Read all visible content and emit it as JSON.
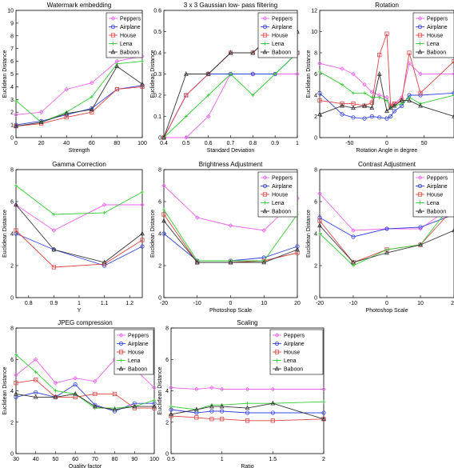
{
  "series_names": [
    "Peppers",
    "Airplane",
    "House",
    "Lena",
    "Baboon"
  ],
  "series_colors": [
    "#ee66ee",
    "#3344dd",
    "#dd4444",
    "#33cc33",
    "#333333"
  ],
  "ylabel": "Euclidean Distance",
  "chart_data": [
    {
      "type": "line",
      "title": "Watermark embedding",
      "xlabel": "Strength",
      "ylabel": "Euclidean Distance",
      "xlim": [
        0,
        100
      ],
      "ylim": [
        0,
        10
      ],
      "xticks": [
        0,
        20,
        40,
        60,
        80,
        100
      ],
      "yticks": [
        0,
        1,
        2,
        3,
        4,
        5,
        6,
        7,
        8,
        9,
        10
      ],
      "legend": "top-left",
      "x": [
        0,
        20,
        40,
        60,
        80,
        100
      ],
      "series": [
        {
          "name": "Peppers",
          "values": [
            1.8,
            2.0,
            3.8,
            4.3,
            6.0,
            6.4
          ]
        },
        {
          "name": "Airplane",
          "values": [
            1.0,
            1.3,
            1.8,
            2.3,
            3.8,
            4.1
          ]
        },
        {
          "name": "House",
          "values": [
            0.9,
            1.1,
            1.6,
            2.0,
            3.8,
            4.0
          ]
        },
        {
          "name": "Lena",
          "values": [
            2.9,
            1.2,
            2.0,
            3.2,
            5.8,
            6.0
          ]
        },
        {
          "name": "Baboon",
          "values": [
            0.9,
            1.2,
            1.9,
            2.2,
            5.6,
            4.2
          ]
        }
      ]
    },
    {
      "type": "line",
      "title": "3 x 3 Gaussian low- pass filtering",
      "xlabel": "Standard Deviation",
      "ylabel": "Euclidean Distance",
      "xlim": [
        0.4,
        1
      ],
      "ylim": [
        0,
        0.6
      ],
      "xticks": [
        0.4,
        0.5,
        0.6,
        0.7,
        0.8,
        0.9,
        1
      ],
      "yticks": [
        0,
        0.1,
        0.2,
        0.3,
        0.4,
        0.5,
        0.6
      ],
      "legend": "top-right",
      "x": [
        0.4,
        0.5,
        0.6,
        0.7,
        0.8,
        0.9,
        1.0
      ],
      "series": [
        {
          "name": "Peppers",
          "values": [
            0,
            0,
            0.1,
            0.3,
            0.3,
            0.3,
            0.3
          ]
        },
        {
          "name": "Airplane",
          "values": [
            0,
            0.2,
            0.3,
            0.3,
            0.3,
            0.3,
            0.4
          ]
        },
        {
          "name": "House",
          "values": [
            0,
            0.2,
            0.3,
            0.4,
            0.4,
            0.5,
            0.4
          ]
        },
        {
          "name": "Lena",
          "values": [
            0,
            0.1,
            0.2,
            0.3,
            0.2,
            0.3,
            0.4
          ]
        },
        {
          "name": "Baboon",
          "values": [
            0,
            0.3,
            0.3,
            0.4,
            0.4,
            0.5,
            0.5
          ]
        }
      ]
    },
    {
      "type": "line",
      "title": "Rotation",
      "xlabel": "Rotation Angle in degree",
      "ylabel": "Euclidean Distance",
      "xlim": [
        -90,
        90
      ],
      "ylim": [
        0,
        12
      ],
      "xticks": [
        -50,
        0,
        50
      ],
      "yticks": [
        0,
        2,
        4,
        6,
        8,
        10,
        12
      ],
      "legend": "top-right",
      "x": [
        -90,
        -60,
        -45,
        -30,
        -20,
        -10,
        0,
        5,
        10,
        20,
        30,
        45,
        90
      ],
      "series": [
        {
          "name": "Peppers",
          "values": [
            7.0,
            6.5,
            6.0,
            5.0,
            4.3,
            4.0,
            3.8,
            3.0,
            3.2,
            3.8,
            7.0,
            6.0,
            6.0
          ]
        },
        {
          "name": "Airplane",
          "values": [
            4.2,
            2.2,
            1.9,
            1.8,
            2.0,
            1.9,
            1.8,
            2.0,
            2.5,
            3.0,
            4.0,
            4.0,
            4.2
          ]
        },
        {
          "name": "House",
          "values": [
            3.5,
            3.2,
            3.2,
            3.0,
            3.3,
            7.8,
            9.8,
            3.0,
            3.2,
            3.5,
            8.0,
            4.2,
            7.2
          ]
        },
        {
          "name": "Lena",
          "values": [
            6.2,
            5.0,
            4.2,
            4.2,
            3.8,
            3.8,
            3.5,
            2.8,
            3.0,
            3.2,
            3.8,
            3.2,
            4.0
          ]
        },
        {
          "name": "Baboon",
          "values": [
            2.2,
            3.0,
            2.8,
            3.0,
            2.8,
            6.0,
            2.5,
            2.8,
            3.0,
            3.5,
            3.5,
            3.0,
            2.0
          ]
        }
      ]
    },
    {
      "type": "line",
      "title": "Gamma Correction",
      "xlabel": "Y",
      "ylabel": "Euclidean Distance",
      "xlim": [
        0.75,
        1.25
      ],
      "ylim": [
        0,
        8
      ],
      "xticks": [
        0.8,
        0.9,
        1,
        1.1,
        1.2
      ],
      "yticks": [
        0,
        2,
        4,
        6,
        8
      ],
      "legend": "none",
      "x": [
        0.75,
        0.9,
        1.1,
        1.25
      ],
      "series": [
        {
          "name": "Peppers",
          "values": [
            5.8,
            4.2,
            5.8,
            5.8
          ]
        },
        {
          "name": "Airplane",
          "values": [
            4.0,
            3.0,
            2.0,
            3.2
          ]
        },
        {
          "name": "House",
          "values": [
            4.2,
            1.9,
            2.1,
            3.6
          ]
        },
        {
          "name": "Lena",
          "values": [
            7.0,
            5.2,
            5.3,
            6.6
          ]
        },
        {
          "name": "Baboon",
          "values": [
            5.8,
            3.0,
            2.2,
            4.0
          ]
        }
      ]
    },
    {
      "type": "line",
      "title": "Brightness Adjustment",
      "xlabel": "Photoshop Scale",
      "ylabel": "Euclidean Distance",
      "xlim": [
        -20,
        20
      ],
      "ylim": [
        0,
        8
      ],
      "xticks": [
        -20,
        -10,
        0,
        10,
        20
      ],
      "yticks": [
        0,
        2,
        4,
        6,
        8
      ],
      "legend": "top-right",
      "x": [
        -20,
        -10,
        0,
        10,
        20
      ],
      "series": [
        {
          "name": "Peppers",
          "values": [
            7.0,
            5.0,
            4.5,
            4.2,
            6.2
          ]
        },
        {
          "name": "Airplane",
          "values": [
            4.0,
            2.3,
            2.3,
            2.5,
            3.2
          ]
        },
        {
          "name": "House",
          "values": [
            5.2,
            2.2,
            2.2,
            2.3,
            2.8
          ]
        },
        {
          "name": "Lena",
          "values": [
            5.5,
            2.3,
            2.3,
            2.3,
            5.2
          ]
        },
        {
          "name": "Baboon",
          "values": [
            4.8,
            2.2,
            2.2,
            2.2,
            3.0
          ]
        }
      ]
    },
    {
      "type": "line",
      "title": "Contrast Adjustment",
      "xlabel": "Photoshop Scale",
      "ylabel": "Euclidean Distance",
      "xlim": [
        -20,
        20
      ],
      "ylim": [
        0,
        8
      ],
      "xticks": [
        -20,
        -10,
        0,
        10,
        20
      ],
      "yticks": [
        0,
        2,
        4,
        6,
        8
      ],
      "legend": "top-right",
      "x": [
        -20,
        -10,
        0,
        10,
        20
      ],
      "series": [
        {
          "name": "Peppers",
          "values": [
            6.5,
            4.2,
            4.3,
            4.3,
            5.8
          ]
        },
        {
          "name": "Airplane",
          "values": [
            5.0,
            3.8,
            4.3,
            4.4,
            5.2
          ]
        },
        {
          "name": "House",
          "values": [
            4.8,
            2.2,
            3.0,
            3.3,
            5.6
          ]
        },
        {
          "name": "Lena",
          "values": [
            4.0,
            2.0,
            3.0,
            3.3,
            6.0
          ]
        },
        {
          "name": "Baboon",
          "values": [
            4.5,
            2.2,
            2.8,
            3.3,
            4.2
          ]
        }
      ]
    },
    {
      "type": "line",
      "title": "JPEG compression",
      "xlabel": "Quality factor",
      "ylabel": "Euclidean Distance",
      "xlim": [
        30,
        100
      ],
      "ylim": [
        0,
        8
      ],
      "xticks": [
        30,
        40,
        50,
        60,
        70,
        80,
        90,
        100
      ],
      "yticks": [
        0,
        2,
        4,
        6,
        8
      ],
      "legend": "top-right",
      "x": [
        30,
        40,
        50,
        60,
        70,
        80,
        90,
        100
      ],
      "series": [
        {
          "name": "Peppers",
          "values": [
            5.0,
            6.0,
            4.5,
            4.8,
            4.6,
            6.0,
            5.4,
            4.2
          ]
        },
        {
          "name": "Airplane",
          "values": [
            3.6,
            3.9,
            3.6,
            4.4,
            3.1,
            2.7,
            3.2,
            3.2
          ]
        },
        {
          "name": "House",
          "values": [
            4.5,
            4.7,
            3.6,
            3.6,
            3.8,
            3.8,
            2.9,
            2.9
          ]
        },
        {
          "name": "Lena",
          "values": [
            6.3,
            5.2,
            4.0,
            3.8,
            2.9,
            2.9,
            3.0,
            3.4
          ]
        },
        {
          "name": "Baboon",
          "values": [
            3.8,
            3.6,
            3.6,
            3.8,
            3.0,
            2.8,
            3.0,
            3.0
          ]
        }
      ]
    },
    {
      "type": "line",
      "title": "Scaling",
      "xlabel": "Ratio",
      "ylabel": "Euclidean Distance",
      "xlim": [
        0.5,
        2
      ],
      "ylim": [
        0,
        8
      ],
      "xticks": [
        0.5,
        1,
        1.5,
        2
      ],
      "yticks": [
        0,
        2,
        4,
        6,
        8
      ],
      "legend": "top-right",
      "x": [
        0.5,
        0.75,
        0.9,
        1.0,
        1.25,
        1.5,
        2.0
      ],
      "series": [
        {
          "name": "Peppers",
          "values": [
            4.2,
            4.1,
            4.2,
            4.1,
            4.1,
            4.1,
            4.1
          ]
        },
        {
          "name": "Airplane",
          "values": [
            2.8,
            2.6,
            2.7,
            2.7,
            2.6,
            2.6,
            2.6
          ]
        },
        {
          "name": "House",
          "values": [
            2.4,
            2.3,
            2.2,
            2.2,
            2.1,
            2.1,
            2.2
          ]
        },
        {
          "name": "Lena",
          "values": [
            3.0,
            2.8,
            3.1,
            3.1,
            3.2,
            3.2,
            3.3
          ]
        },
        {
          "name": "Baboon",
          "values": [
            2.5,
            2.8,
            3.0,
            3.0,
            2.9,
            3.2,
            2.2
          ]
        }
      ]
    }
  ]
}
